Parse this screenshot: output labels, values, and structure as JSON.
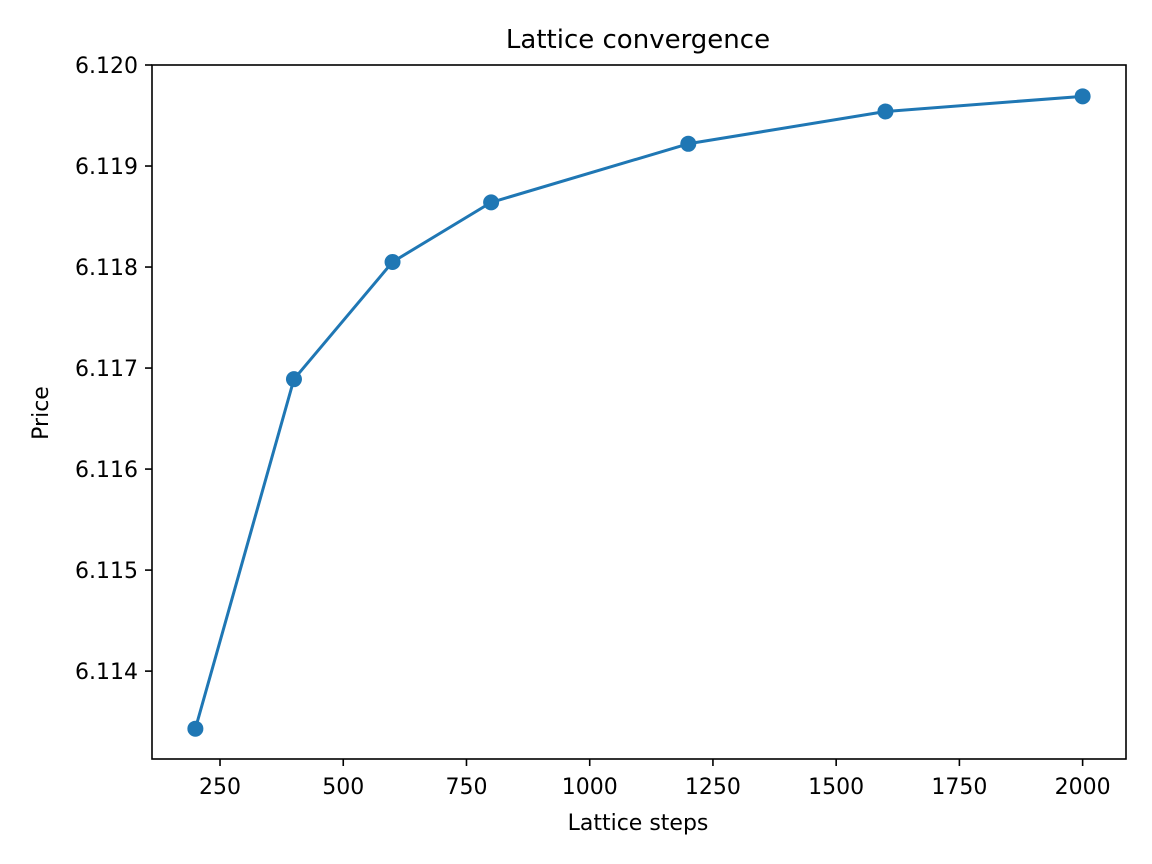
{
  "chart_data": {
    "type": "line",
    "title": "Lattice convergence",
    "xlabel": "Lattice steps",
    "ylabel": "Price",
    "series": [
      {
        "x": [
          200,
          400,
          600,
          800,
          1200,
          1600,
          2000
        ],
        "y": [
          6.11343,
          6.11689,
          6.11805,
          6.11864,
          6.11922,
          6.11954,
          6.11969
        ],
        "color": "#1f77b4",
        "marker": "circle"
      }
    ],
    "xlim": [
      112,
      2088
    ],
    "ylim": [
      6.11313,
      6.12
    ],
    "xticks": [
      250,
      500,
      750,
      1000,
      1250,
      1500,
      1750,
      2000
    ],
    "xtick_labels": [
      "250",
      "500",
      "750",
      "1000",
      "1250",
      "1500",
      "1750",
      "2000"
    ],
    "yticks": [
      6.114,
      6.115,
      6.116,
      6.117,
      6.118,
      6.119,
      6.12
    ],
    "ytick_labels": [
      "6.114",
      "6.115",
      "6.116",
      "6.117",
      "6.118",
      "6.119",
      "6.120"
    ],
    "grid": false,
    "legend": false
  }
}
